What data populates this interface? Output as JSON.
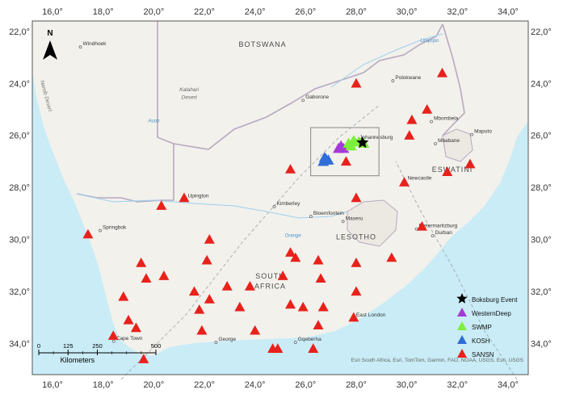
{
  "map": {
    "lon_ticks": [
      "16,0°",
      "18,0°",
      "20,0°",
      "22,0°",
      "24,0°",
      "26,0°",
      "28,0°",
      "30,0°",
      "32,0°",
      "34,0°"
    ],
    "lat_ticks": [
      "22,0°",
      "24,0°",
      "26,0°",
      "28,0°",
      "30,0°",
      "32,0°",
      "34,0°"
    ],
    "lon_range": [
      15.2,
      34.8
    ],
    "lat_range": [
      -21.6,
      -35.2
    ],
    "north_label": "N",
    "countries": [
      {
        "name": "BOTSWANA",
        "lon": 24.3,
        "lat": -22.6
      },
      {
        "name": "SOUTH",
        "lon": 24.6,
        "lat": -31.5
      },
      {
        "name": "AFRICA",
        "lon": 24.6,
        "lat": -31.9
      },
      {
        "name": "LESOTHO",
        "lon": 28.0,
        "lat": -30.0
      },
      {
        "name": "ESWATINI",
        "lon": 31.8,
        "lat": -27.4
      }
    ],
    "cities": [
      {
        "name": "Windhoek",
        "lon": 17.1,
        "lat": -22.6
      },
      {
        "name": "Gaborone",
        "lon": 25.9,
        "lat": -24.65
      },
      {
        "name": "Polokwane",
        "lon": 29.45,
        "lat": -23.9
      },
      {
        "name": "Mbombela",
        "lon": 30.97,
        "lat": -25.47
      },
      {
        "name": "Maputo",
        "lon": 32.57,
        "lat": -25.97
      },
      {
        "name": "Mbabane",
        "lon": 31.13,
        "lat": -26.32
      },
      {
        "name": "Johannesburg",
        "lon": 28.04,
        "lat": -26.2
      },
      {
        "name": "Upington",
        "lon": 21.25,
        "lat": -28.45
      },
      {
        "name": "Kimberley",
        "lon": 24.76,
        "lat": -28.74
      },
      {
        "name": "Bloemfontein",
        "lon": 26.21,
        "lat": -29.12
      },
      {
        "name": "Maseru",
        "lon": 27.48,
        "lat": -29.31
      },
      {
        "name": "Newcastle",
        "lon": 29.93,
        "lat": -27.76
      },
      {
        "name": "Springbok",
        "lon": 17.88,
        "lat": -29.66
      },
      {
        "name": "Pietermaritzburg",
        "lon": 30.38,
        "lat": -29.6
      },
      {
        "name": "Durban",
        "lon": 31.02,
        "lat": -29.86
      },
      {
        "name": "East London",
        "lon": 27.9,
        "lat": -33.02
      },
      {
        "name": "Cape Town",
        "lon": 18.42,
        "lat": -33.92
      },
      {
        "name": "George",
        "lon": 22.46,
        "lat": -33.96
      },
      {
        "name": "Gqeberha",
        "lon": 25.6,
        "lat": -33.96
      }
    ],
    "regions": [
      {
        "name": "Kalahari",
        "lon": 21.4,
        "lat": -24.3
      },
      {
        "name": "Desert",
        "lon": 21.4,
        "lat": -24.6
      }
    ],
    "rivers": [
      {
        "name": "Limpopo",
        "lon": 30.9,
        "lat": -22.4
      },
      {
        "name": "Orange",
        "lon": 25.5,
        "lat": -29.9
      },
      {
        "name": "Auob",
        "lon": 20.0,
        "lat": -25.5
      }
    ],
    "desert_side_label": "Namib Desert",
    "attribution": "Esri South Africa, Esri, TomTom, Garmin, FAO, NOAA, USGS, Esri, USGS",
    "colors": {
      "ocean": "#c9ecf7",
      "land": "#f2f1ec",
      "border": "#b7a9c0",
      "sansn": "#e8211b",
      "swmp": "#7cf03a",
      "kosh": "#2f6ed6",
      "westerndeep": "#a43ad6",
      "event": "#000000"
    }
  },
  "scalebar": {
    "ticks": [
      "0",
      "125",
      "250",
      "500"
    ],
    "unit": "Kilometers"
  },
  "legend": {
    "items": [
      {
        "label": "Boksburg Event",
        "symbol": "star",
        "color": "#000000"
      },
      {
        "label": "WesternDeep",
        "symbol": "triangle",
        "color": "#a43ad6"
      },
      {
        "label": "SWMP",
        "symbol": "triangle",
        "color": "#7cf03a"
      },
      {
        "label": "KOSH",
        "symbol": "triangle",
        "color": "#2f6ed6"
      },
      {
        "label": "SANSN",
        "symbol": "triangle",
        "color": "#e8211b"
      }
    ]
  },
  "stations": {
    "sansn": [
      [
        31.4,
        -23.6
      ],
      [
        28.0,
        -24.0
      ],
      [
        30.8,
        -25.0
      ],
      [
        30.2,
        -25.4
      ],
      [
        30.1,
        -26.0
      ],
      [
        27.6,
        -27.0
      ],
      [
        25.4,
        -27.3
      ],
      [
        29.9,
        -27.8
      ],
      [
        31.6,
        -27.4
      ],
      [
        32.5,
        -27.1
      ],
      [
        28.0,
        -28.4
      ],
      [
        20.3,
        -28.7
      ],
      [
        21.2,
        -28.4
      ],
      [
        30.6,
        -29.5
      ],
      [
        17.4,
        -29.8
      ],
      [
        22.2,
        -30.0
      ],
      [
        25.4,
        -30.5
      ],
      [
        22.1,
        -30.8
      ],
      [
        25.6,
        -30.7
      ],
      [
        26.5,
        -30.8
      ],
      [
        29.4,
        -30.7
      ],
      [
        28.0,
        -30.9
      ],
      [
        19.5,
        -30.9
      ],
      [
        20.4,
        -31.4
      ],
      [
        19.7,
        -31.5
      ],
      [
        25.1,
        -31.4
      ],
      [
        26.6,
        -31.5
      ],
      [
        22.9,
        -31.8
      ],
      [
        23.8,
        -31.8
      ],
      [
        21.6,
        -32.0
      ],
      [
        28.0,
        -32.0
      ],
      [
        18.8,
        -32.2
      ],
      [
        22.2,
        -32.3
      ],
      [
        25.4,
        -32.5
      ],
      [
        26.7,
        -32.6
      ],
      [
        21.8,
        -32.7
      ],
      [
        23.4,
        -32.6
      ],
      [
        25.9,
        -32.6
      ],
      [
        19.0,
        -33.1
      ],
      [
        27.9,
        -33.0
      ],
      [
        19.3,
        -33.4
      ],
      [
        24.0,
        -33.5
      ],
      [
        26.5,
        -33.3
      ],
      [
        21.9,
        -33.5
      ],
      [
        18.4,
        -33.7
      ],
      [
        19.6,
        -34.6
      ],
      [
        24.7,
        -34.2
      ],
      [
        24.9,
        -34.2
      ],
      [
        26.3,
        -34.2
      ]
    ],
    "kosh": [
      [
        26.8,
        -26.9
      ],
      [
        26.7,
        -27.0
      ],
      [
        26.9,
        -26.95
      ],
      [
        26.75,
        -26.85
      ]
    ],
    "westerndeep": [
      [
        27.3,
        -26.5
      ],
      [
        27.5,
        -26.5
      ],
      [
        27.4,
        -26.4
      ]
    ],
    "swmp": [
      [
        27.7,
        -26.3
      ],
      [
        27.9,
        -26.2
      ],
      [
        28.1,
        -26.25
      ],
      [
        27.8,
        -26.4
      ],
      [
        28.3,
        -26.3
      ]
    ],
    "event": [
      [
        28.25,
        -26.28
      ]
    ],
    "study_box": {
      "lon1": 26.2,
      "lat1": -25.7,
      "lon2": 28.9,
      "lat2": -27.55
    }
  }
}
